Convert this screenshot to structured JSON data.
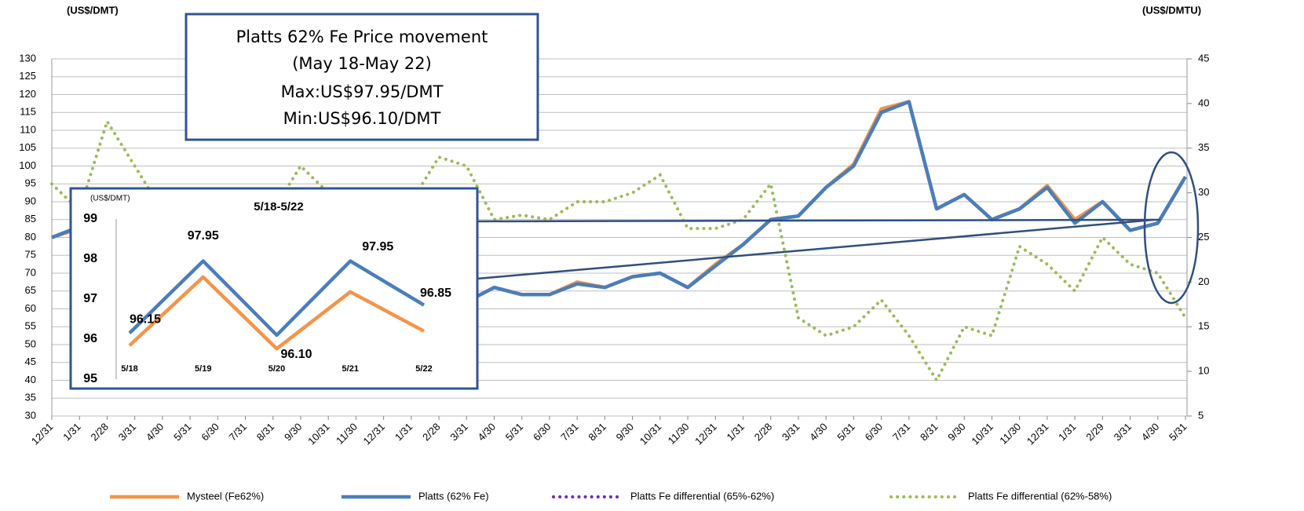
{
  "chart_data": [
    {
      "type": "line",
      "ylabel": "(US$/DMT)",
      "y2label": "(US$/DMTU)",
      "annotation": [
        "Platts 62% Fe Price movement",
        "(May 18-May 22)",
        "Max:US$97.95/DMT",
        "Min:US$96.10/DMT"
      ],
      "categories": [
        "12/31",
        "1/31",
        "2/28",
        "3/31",
        "4/30",
        "5/31",
        "6/30",
        "7/31",
        "8/31",
        "9/30",
        "10/31",
        "11/30",
        "12/31",
        "1/31",
        "2/28",
        "3/31",
        "4/30",
        "5/31",
        "6/30",
        "7/31",
        "8/31",
        "9/30",
        "10/31",
        "11/30",
        "12/31",
        "1/31",
        "2/28",
        "3/31",
        "4/30",
        "5/31",
        "6/30",
        "7/31",
        "8/31",
        "9/30",
        "10/31",
        "11/30",
        "12/31",
        "1/31",
        "2/29",
        "3/31",
        "4/30",
        "5/31"
      ],
      "ylim": [
        30,
        130
      ],
      "yticks": [
        30,
        35,
        40,
        45,
        50,
        55,
        60,
        65,
        70,
        75,
        80,
        85,
        90,
        95,
        100,
        105,
        110,
        115,
        120,
        125,
        130
      ],
      "y2lim": [
        5,
        45
      ],
      "y2ticks": [
        5,
        10,
        15,
        20,
        25,
        30,
        35,
        40,
        45
      ],
      "grid": true,
      "series": [
        {
          "name": "Mysteel (Fe62%)",
          "color": "#f4944a",
          "values": [
            80,
            82.5,
            88,
            85,
            70,
            65,
            60,
            58,
            56,
            58,
            55,
            60,
            65,
            62,
            60,
            62,
            66,
            64,
            64,
            67.5,
            66,
            69,
            70,
            66,
            72.5,
            78,
            85,
            86,
            94,
            100.5,
            116,
            118,
            88,
            92,
            85,
            88,
            94.5,
            85,
            90,
            82,
            84,
            97
          ]
        },
        {
          "name": "Platts (62% Fe)",
          "color": "#4a7ebb",
          "values": [
            80,
            83,
            88,
            85,
            70,
            65,
            60,
            58,
            56,
            58,
            55,
            60,
            65,
            62,
            60,
            62,
            66,
            64,
            64,
            67,
            66,
            69,
            70,
            66,
            72,
            78,
            85,
            86,
            94,
            100,
            115,
            118,
            88,
            92,
            85,
            88,
            94,
            84,
            90,
            82,
            84,
            97
          ]
        },
        {
          "name": "Platts Fe differential (65%-62%)",
          "color": "#7030a0",
          "axis": "y2",
          "values": [
            null,
            null,
            null,
            null,
            null,
            null,
            null,
            null,
            null,
            null,
            null,
            null,
            null,
            null,
            null,
            null,
            null,
            null,
            null,
            null,
            null,
            null,
            null,
            null,
            null,
            null,
            null,
            null,
            null,
            null,
            null,
            null,
            null,
            null,
            null,
            null,
            null,
            null,
            null,
            null,
            null,
            null
          ]
        },
        {
          "name": "Platts Fe differential (62%-58%)",
          "color": "#9bbb59",
          "axis": "y2",
          "values": [
            31,
            28,
            38,
            33,
            28,
            27,
            27,
            27,
            28,
            33,
            30,
            27,
            28,
            29,
            34,
            33,
            27,
            27.5,
            27,
            29,
            29,
            30,
            32,
            26,
            26,
            27,
            31,
            16,
            14,
            15,
            18,
            14,
            9,
            15,
            14,
            24,
            22,
            19,
            25,
            22,
            21,
            16
          ]
        }
      ]
    },
    {
      "type": "line",
      "title": "5/18-5/22",
      "ylabel": "(US$/DMT)",
      "categories": [
        "5/18",
        "5/19",
        "5/20",
        "5/21",
        "5/22"
      ],
      "ylim": [
        95,
        99
      ],
      "yticks": [
        95,
        96,
        97,
        98,
        99
      ],
      "series": [
        {
          "color": "#f4944a",
          "values": [
            95.84,
            97.55,
            95.76,
            97.18,
            96.2
          ]
        },
        {
          "color": "#4a7ebb",
          "values": [
            96.15,
            97.95,
            96.1,
            97.95,
            96.85
          ],
          "value_labels": [
            "96.15",
            "97.95",
            "96.10",
            "97.95",
            "96.85"
          ]
        }
      ]
    }
  ]
}
